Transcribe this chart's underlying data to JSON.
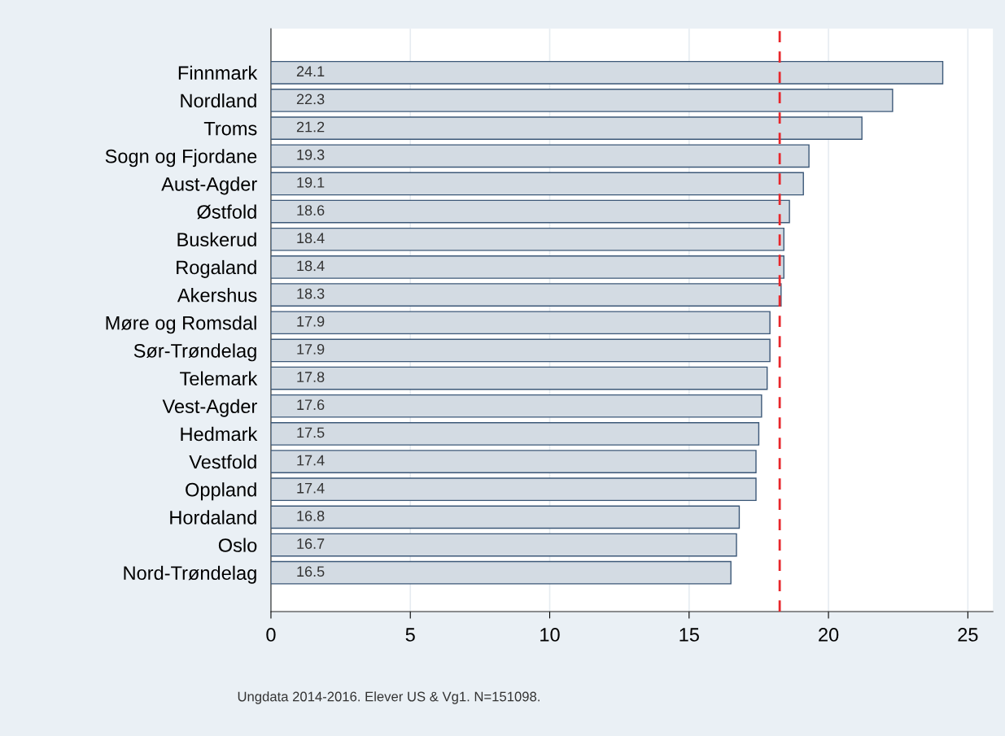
{
  "chart_data": {
    "type": "bar",
    "orientation": "horizontal",
    "categories": [
      "Finnmark",
      "Nordland",
      "Troms",
      "Sogn og Fjordane",
      "Aust-Agder",
      "Østfold",
      "Buskerud",
      "Rogaland",
      "Akershus",
      "Møre og Romsdal",
      "Sør-Trøndelag",
      "Telemark",
      "Vest-Agder",
      "Hedmark",
      "Vestfold",
      "Oppland",
      "Hordaland",
      "Oslo",
      "Nord-Trøndelag"
    ],
    "values": [
      24.1,
      22.3,
      21.2,
      19.3,
      19.1,
      18.6,
      18.4,
      18.4,
      18.3,
      17.9,
      17.9,
      17.8,
      17.6,
      17.5,
      17.4,
      17.4,
      16.8,
      16.7,
      16.5
    ],
    "color": "#d3dbe3",
    "data_labels": true,
    "xlim": [
      0,
      25.9
    ],
    "xticks": [
      0,
      5,
      10,
      15,
      20,
      25
    ],
    "grid": "x",
    "ref_lines": [
      {
        "axis": "x",
        "value": 18.25,
        "color": "#e8262b",
        "line_style": "dashed"
      }
    ],
    "annotations": [
      "Ungdata 2014-2016. Elever US & Vg1. N=151098."
    ]
  }
}
